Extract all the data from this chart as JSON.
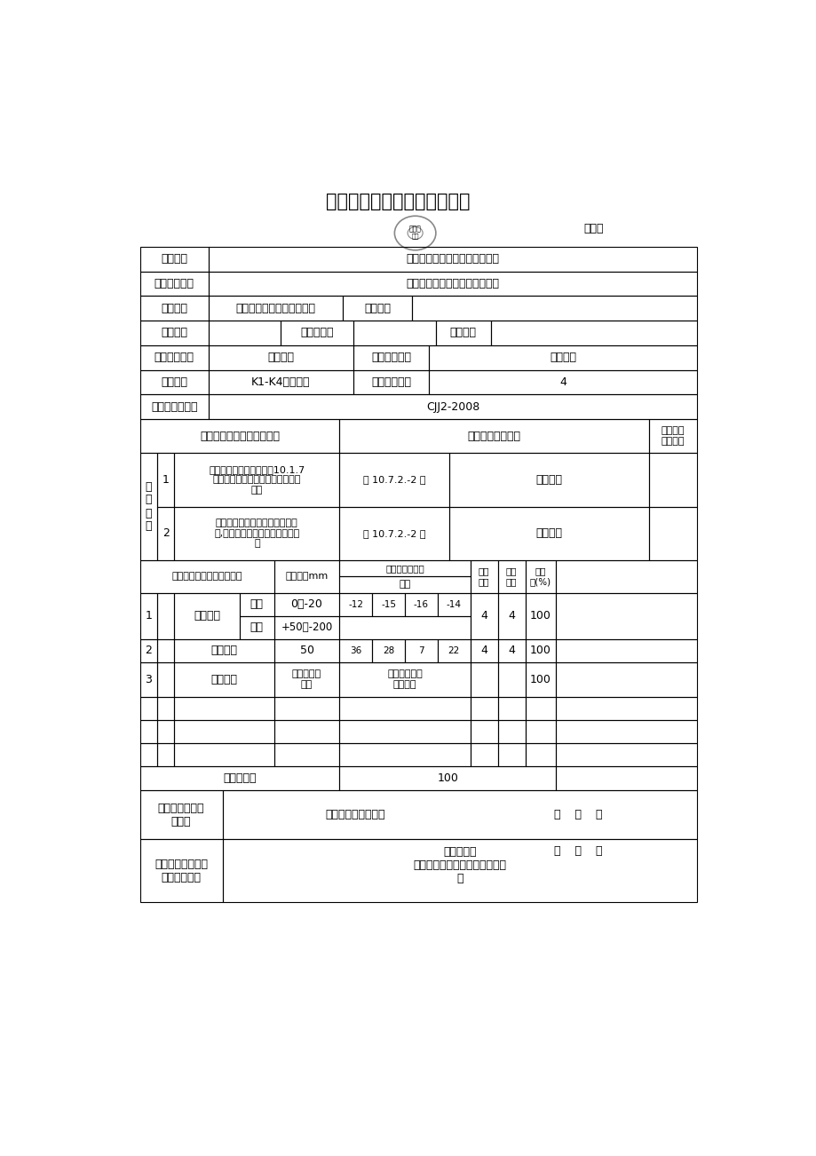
{
  "title": "基坑开挖检验批质量检验记录",
  "bianhu_label": "编号：",
  "row1_label": "工程名称",
  "row1_value": "山阳县板岩镇安门口村亮化工程",
  "row2_label": "单位工程名称",
  "row2_value": "山阳县板岩镇安门口村亮化工程",
  "row3_label": "施工单位",
  "row3_value": "陕西堡垒装饰工程有限公司",
  "row3_mid": "分包单位",
  "row4_label": "项目经理",
  "row4_mid": "技术负责人",
  "row4_right": "施工工长",
  "row5_label": "分部工程名称",
  "row5_value": "亮化工程",
  "row5_mid": "分项工程名称",
  "row5_right": "路灯基础",
  "row6_label": "验收部位",
  "row6_value": "K1-K4基坑开挖",
  "row6_mid": "主要工程数量",
  "row6_right": "4",
  "row7_label": "验收规范及图号",
  "row7_value": "CJJ2-2008",
  "sec1_left": "施工与质量验收规范的规定",
  "sec1_mid": "施工单位验收记录",
  "sec1_right": "监理单位\n验收记录",
  "zhu_label": "主\n控\n项\n目",
  "zhu1_num": "1",
  "zhu1_content": "地基承载力应按本范本第10.1.7\n条规定进行检验，确认符合设计要\n求。",
  "zhu1_ref": "第 10.7.2.-2 条",
  "zhu1_result": "符合要求",
  "zhu2_num": "2",
  "zhu2_content": "地基处理应符合专项处理方案要\n求,处理后的地基必须满足设计要\n求",
  "zhu2_ref": "第 10.7.2.-2 条",
  "zhu2_result": "符合要求",
  "sec2_spec": "施工与质量验收规范的规定",
  "sec2_tol": "允许偏差mm",
  "sec2_meas_top": "实测",
  "sec2_meas_bot": "偏差值或实测值",
  "sec2_should": "应侧\n点数",
  "sec2_qual": "合格\n点数",
  "sec2_rate": "合格\n率(%)",
  "g1_num": "1",
  "g1_item": "基高工程",
  "g1_sub1": "土方",
  "g1_sub2": "石方",
  "g1_tol1": "0，-20",
  "g1_tol2": "+50，-200",
  "g1_meas1": [
    "-12",
    "-15",
    "-16",
    "-14"
  ],
  "g1_should": "4",
  "g1_qual": "4",
  "g1_rate": "100",
  "g2_num": "2",
  "g2_item": "轴线偏位",
  "g2_tol": "50",
  "g2_meas": [
    "36",
    "28",
    "7",
    "22"
  ],
  "g2_should": "4",
  "g2_qual": "4",
  "g2_rate": "100",
  "g3_num": "3",
  "g3_item": "基坑尺寸",
  "g3_tol": "不小于设计\n规定",
  "g3_meas": "基坑尺寸符合\n设计要求",
  "g3_rate": "100",
  "avg_label": "平均合格率",
  "avg_value": "100",
  "f1_label": "施工单位检查评\n定结论",
  "f1_value": "项目专业技术负责人",
  "f1_date": "年    月    日",
  "f2_label": "监理（建设）单位\n检查评定结论",
  "f2_value": "监理工程师\n（建设单位项目专业技术负责人\n）",
  "f2_date": "年    月    日"
}
